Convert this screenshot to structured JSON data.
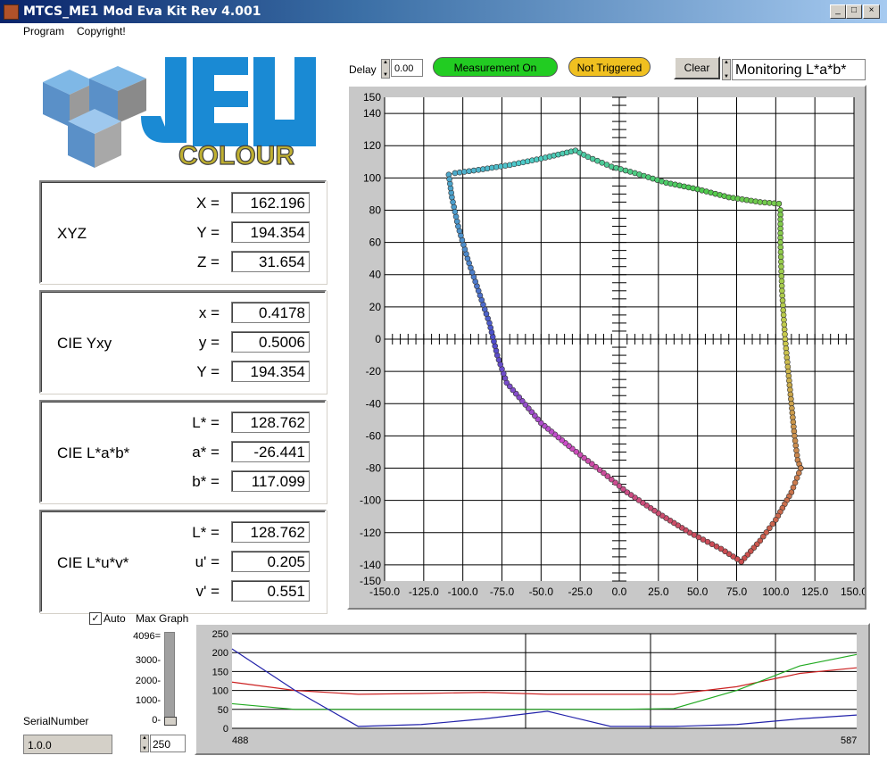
{
  "window": {
    "title": "MTCS_ME1 Mod Eva  Kit Rev  4.001"
  },
  "menu": {
    "items": [
      "Program",
      "Copyright!"
    ]
  },
  "logo": {
    "text_top": "JEN",
    "text_bottom": "COLOUR"
  },
  "toolbar": {
    "delay_label": "Delay",
    "delay_value": "0.00",
    "measurement_status": "Measurement On",
    "trigger_status": "Not Triggered",
    "clear_label": "Clear",
    "mode_value": "Monitoring L*a*b*",
    "colors": {
      "measurement": "#22cc22",
      "trigger": "#f0c020"
    }
  },
  "panels": {
    "xyz": {
      "title": "XYZ",
      "rows": [
        {
          "label": "X =",
          "value": "162.196"
        },
        {
          "label": "Y =",
          "value": "194.354"
        },
        {
          "label": "Z =",
          "value": "31.654"
        }
      ]
    },
    "yxy": {
      "title": "CIE Yxy",
      "rows": [
        {
          "label": "x =",
          "value": "0.4178"
        },
        {
          "label": "y =",
          "value": "0.5006"
        },
        {
          "label": "Y =",
          "value": "194.354"
        }
      ]
    },
    "lab": {
      "title": "CIE L*a*b*",
      "rows": [
        {
          "label": "L* =",
          "value": "128.762"
        },
        {
          "label": "a* =",
          "value": "-26.441"
        },
        {
          "label": "b* =",
          "value": "117.099"
        }
      ]
    },
    "luv": {
      "title": "CIE L*u*v*",
      "rows": [
        {
          "label": "L* =",
          "value": "128.762"
        },
        {
          "label": "u' =",
          "value": "0.205"
        },
        {
          "label": "v' =",
          "value": "0.551"
        }
      ]
    }
  },
  "graph_controls": {
    "auto_label": "Auto",
    "auto_checked": true,
    "max_graph_label": "Max Graph",
    "scale_ticks": [
      "4096=",
      "3000-",
      "2000-",
      "1000-",
      "0-"
    ],
    "max_value": "250",
    "serial_label": "SerialNumber",
    "serial_value": "1.0.0"
  },
  "chart_data": [
    {
      "type": "scatter",
      "title": "",
      "xlabel": "",
      "ylabel": "",
      "xlim": [
        -150,
        150
      ],
      "ylim": [
        -150,
        150
      ],
      "grid": true,
      "x_ticks": [
        "-150.0",
        "-125.0",
        "-100.0",
        "-75.0",
        "-50.0",
        "-25.0",
        "0.0",
        "25.0",
        "50.0",
        "75.0",
        "100.0",
        "125.0",
        "150.0"
      ],
      "y_ticks": [
        "150",
        "140",
        "120",
        "100",
        "80",
        "60",
        "40",
        "20",
        "0",
        "-20",
        "-40",
        "-60",
        "-80",
        "-100",
        "-120",
        "-140",
        "-150"
      ],
      "series": [
        {
          "points": [
            [
              -109,
              102
            ],
            [
              -105,
              103
            ],
            [
              -90,
              105
            ],
            [
              -70,
              108
            ],
            [
              -50,
              112
            ],
            [
              -28,
              117
            ],
            [
              -20,
              113
            ],
            [
              -5,
              107
            ],
            [
              10,
              103
            ],
            [
              30,
              97
            ],
            [
              50,
              93
            ],
            [
              70,
              88
            ],
            [
              90,
              85
            ],
            [
              102,
              84
            ]
          ]
        },
        {
          "points": [
            [
              102,
              84
            ],
            [
              103,
              80
            ],
            [
              103,
              60
            ],
            [
              104,
              30
            ],
            [
              106,
              0
            ],
            [
              108,
              -20
            ],
            [
              110,
              -40
            ],
            [
              112,
              -60
            ],
            [
              114,
              -75
            ],
            [
              116,
              -80
            ]
          ]
        },
        {
          "points": [
            [
              116,
              -80
            ],
            [
              110,
              -95
            ],
            [
              100,
              -112
            ],
            [
              90,
              -125
            ],
            [
              78,
              -138
            ]
          ]
        },
        {
          "points": [
            [
              78,
              -138
            ],
            [
              65,
              -130
            ],
            [
              45,
              -120
            ],
            [
              25,
              -108
            ],
            [
              5,
              -95
            ],
            [
              -10,
              -83
            ],
            [
              -30,
              -68
            ],
            [
              -50,
              -52
            ],
            [
              -72,
              -27
            ],
            [
              -78,
              -10
            ],
            [
              -83,
              10
            ],
            [
              -90,
              30
            ],
            [
              -97,
              50
            ],
            [
              -103,
              70
            ],
            [
              -107,
              88
            ],
            [
              -109,
              102
            ]
          ]
        }
      ]
    },
    {
      "type": "line",
      "title": "",
      "xlabel": "",
      "ylabel": "",
      "xlim": [
        488,
        587
      ],
      "ylim": [
        0,
        250
      ],
      "y_ticks": [
        "250",
        "200",
        "150",
        "100",
        "50",
        "0"
      ],
      "x_start_label": "488",
      "x_end_label": "587",
      "grid": true,
      "x": [
        488,
        498,
        508,
        518,
        528,
        538,
        548,
        558,
        568,
        578,
        587
      ],
      "series": [
        {
          "color": "#cc2222",
          "values": [
            122,
            100,
            90,
            92,
            95,
            90,
            90,
            90,
            110,
            145,
            160
          ]
        },
        {
          "color": "#22aa22",
          "values": [
            65,
            50,
            50,
            50,
            50,
            50,
            50,
            52,
            100,
            165,
            195
          ]
        },
        {
          "color": "#2222aa",
          "values": [
            210,
            100,
            5,
            10,
            25,
            45,
            5,
            5,
            10,
            25,
            35
          ]
        }
      ]
    }
  ]
}
